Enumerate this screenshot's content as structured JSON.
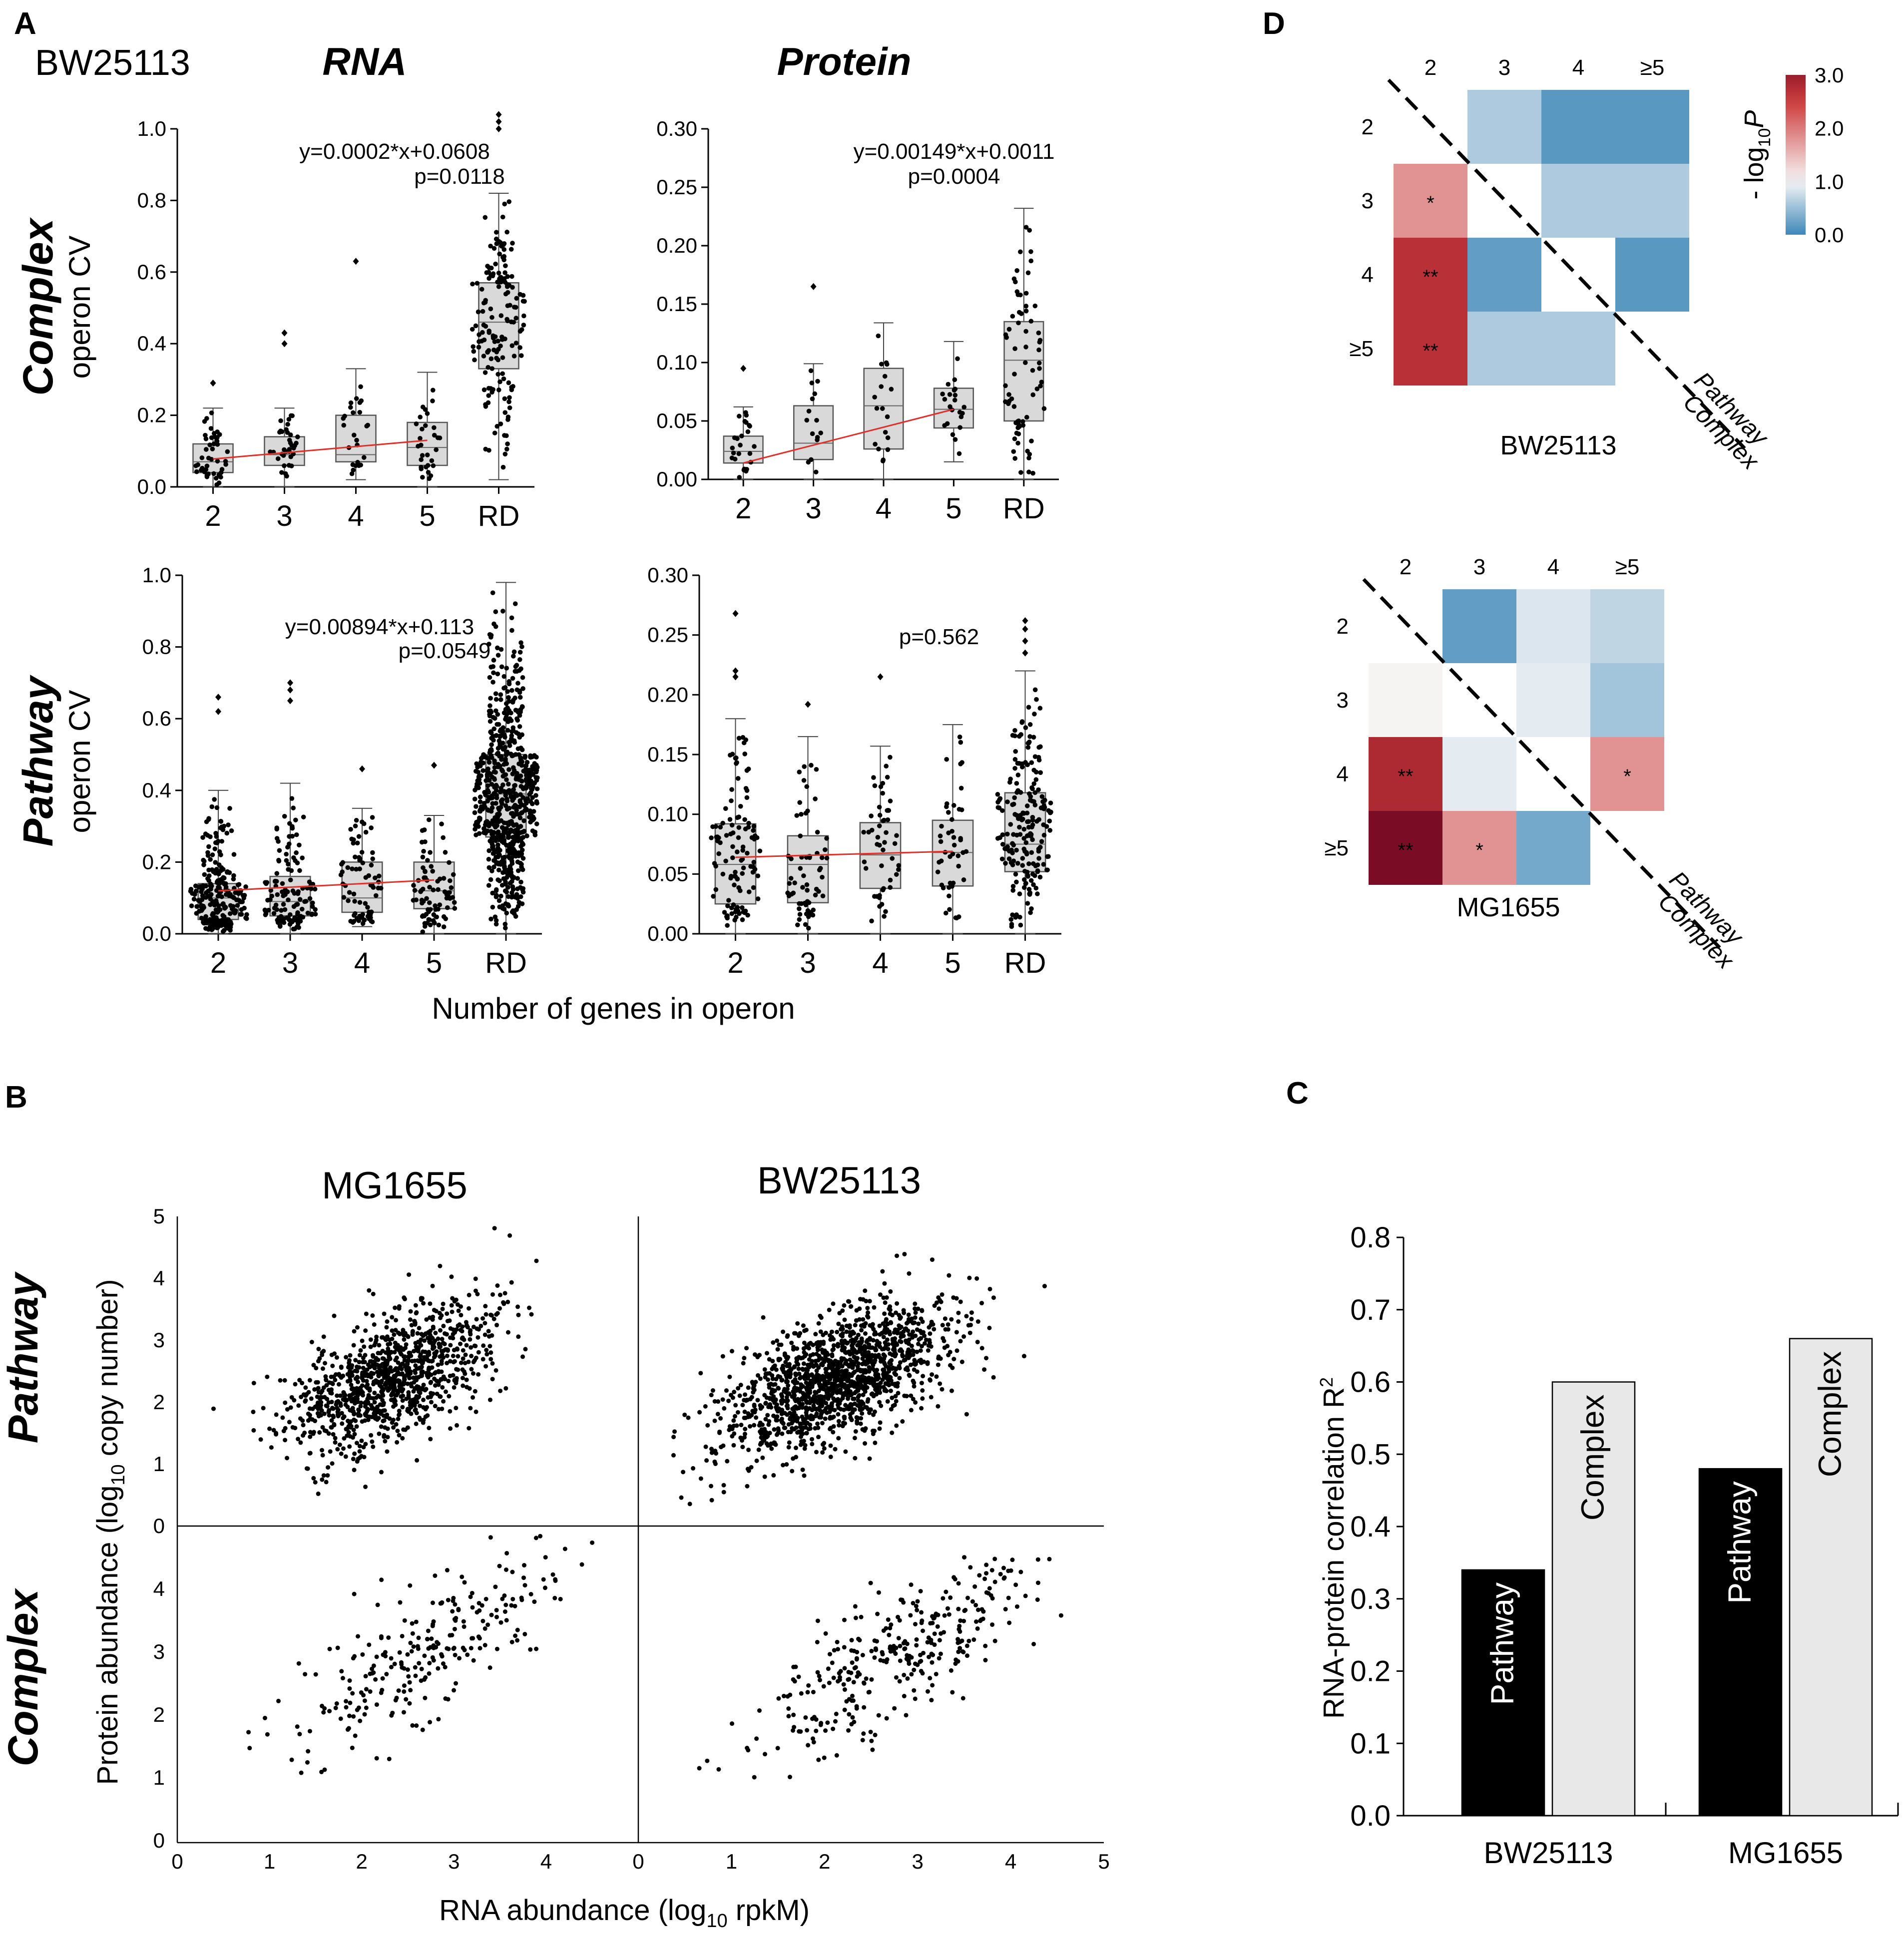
{
  "panel_labels": {
    "a": "A",
    "b": "B",
    "c": "C",
    "d": "D"
  },
  "strain_label": "BW25113",
  "col_titles": {
    "rna": "RNA",
    "protein": "Protein"
  },
  "row_titles": {
    "complex": "Complex",
    "pathway": "Pathway",
    "ylabel_suffix": "operon CV"
  },
  "a_xlabel": "Number of genes in operon",
  "a_categories": [
    "2",
    "3",
    "4",
    "5",
    "RD"
  ],
  "a_annotations": {
    "complex_rna": [
      "y=0.0002*x+0.0608",
      "p=0.0118"
    ],
    "complex_protein": [
      "y=0.00149*x+0.0011",
      "p=0.0004"
    ],
    "pathway_rna": [
      "y=0.00894*x+0.113",
      "p=0.0549"
    ],
    "pathway_protein": [
      "p=0.562"
    ]
  },
  "b_col_titles": [
    "MG1655",
    "BW25113"
  ],
  "b_row_titles": [
    "Pathway",
    "Complex"
  ],
  "b_xlabel_parts": [
    "RNA abundance (log",
    "10",
    " rpkM)"
  ],
  "b_ylabel_parts": [
    "Protein abundance (log",
    "10",
    " copy number)"
  ],
  "c_ylabel_parts": [
    "RNA-protein correlation R",
    "2"
  ],
  "d_labels": {
    "captions": [
      "BW25113",
      "MG1655"
    ],
    "cats": [
      "2",
      "3",
      "4",
      "≥5"
    ],
    "diag_top": "Pathway",
    "diag_bottom": "Complex",
    "colorbar_title_parts": [
      "- log",
      "10",
      "P"
    ],
    "colorbar_ticks": [
      "3.0",
      "2.0",
      "1.0",
      "0.0"
    ]
  },
  "colors": {
    "box": "#d9d9d9",
    "trend": "#e0302a",
    "bar_pathway": "#000000",
    "bar_complex": "#e8e8e8",
    "cmap_low": "#3d87b8",
    "cmap_mid": "#f7f7f7",
    "cmap_high": "#67001f"
  },
  "chart_data": [
    {
      "type": "box",
      "panel": "A",
      "title": "Complex RNA",
      "ylabel": "operon CV",
      "categories": [
        "2",
        "3",
        "4",
        "5",
        "RD"
      ],
      "ylim": [
        0,
        1.0
      ],
      "yticks": [
        "0.0",
        "0.2",
        "0.4",
        "0.6",
        "0.8",
        "1.0"
      ],
      "ytick_values": [
        0,
        0.2,
        0.4,
        0.6,
        0.8,
        1.0
      ],
      "boxes": [
        {
          "q1": 0.04,
          "med": 0.07,
          "q3": 0.12,
          "wlo": 0.0,
          "whi": 0.22,
          "n": 45
        },
        {
          "q1": 0.06,
          "med": 0.09,
          "q3": 0.14,
          "wlo": 0.0,
          "whi": 0.22,
          "n": 35
        },
        {
          "q1": 0.07,
          "med": 0.09,
          "q3": 0.2,
          "wlo": 0.02,
          "whi": 0.33,
          "n": 25
        },
        {
          "q1": 0.06,
          "med": 0.11,
          "q3": 0.18,
          "wlo": 0.0,
          "whi": 0.32,
          "n": 30
        },
        {
          "q1": 0.33,
          "med": 0.46,
          "q3": 0.57,
          "wlo": 0.02,
          "whi": 0.82,
          "n": 160
        }
      ],
      "outliers": [
        [
          0,
          0.29
        ],
        [
          1,
          0.4
        ],
        [
          1,
          0.43
        ],
        [
          2,
          0.63
        ],
        [
          4,
          1.0
        ],
        [
          4,
          1.02
        ],
        [
          4,
          1.04
        ]
      ],
      "trend": {
        "x": [
          2,
          5
        ],
        "y": [
          0.078,
          0.13
        ]
      },
      "annotation": [
        "y=0.0002*x+0.0608",
        "p=0.0118"
      ]
    },
    {
      "type": "box",
      "panel": "A",
      "title": "Complex Protein",
      "ylabel": "operon CV",
      "categories": [
        "2",
        "3",
        "4",
        "5",
        "RD"
      ],
      "ylim": [
        0,
        0.3
      ],
      "yticks": [
        "0.00",
        "0.05",
        "0.10",
        "0.15",
        "0.20",
        "0.25",
        "0.30"
      ],
      "ytick_values": [
        0,
        0.05,
        0.1,
        0.15,
        0.2,
        0.25,
        0.3
      ],
      "boxes": [
        {
          "q1": 0.014,
          "med": 0.024,
          "q3": 0.037,
          "wlo": 0.0,
          "whi": 0.062,
          "n": 25
        },
        {
          "q1": 0.017,
          "med": 0.031,
          "q3": 0.063,
          "wlo": 0.0,
          "whi": 0.099,
          "n": 15
        },
        {
          "q1": 0.026,
          "med": 0.063,
          "q3": 0.095,
          "wlo": 0.0,
          "whi": 0.134,
          "n": 18
        },
        {
          "q1": 0.044,
          "med": 0.06,
          "q3": 0.078,
          "wlo": 0.015,
          "whi": 0.118,
          "n": 22
        },
        {
          "q1": 0.05,
          "med": 0.102,
          "q3": 0.135,
          "wlo": 0.0,
          "whi": 0.232,
          "n": 70
        }
      ],
      "outliers": [
        [
          0,
          0.095
        ],
        [
          1,
          0.165
        ]
      ],
      "trend": {
        "x": [
          2,
          5
        ],
        "y": [
          0.014,
          0.06
        ]
      },
      "annotation": [
        "y=0.00149*x+0.0011",
        "p=0.0004"
      ]
    },
    {
      "type": "box",
      "panel": "A",
      "title": "Pathway RNA",
      "ylabel": "operon CV",
      "categories": [
        "2",
        "3",
        "4",
        "5",
        "RD"
      ],
      "ylim": [
        0,
        1.0
      ],
      "yticks": [
        "0.0",
        "0.2",
        "0.4",
        "0.6",
        "0.8",
        "1.0"
      ],
      "ytick_values": [
        0,
        0.2,
        0.4,
        0.6,
        0.8,
        1.0
      ],
      "boxes": [
        {
          "q1": 0.04,
          "med": 0.1,
          "q3": 0.14,
          "wlo": 0.0,
          "whi": 0.4,
          "n": 260
        },
        {
          "q1": 0.05,
          "med": 0.09,
          "q3": 0.16,
          "wlo": 0.0,
          "whi": 0.42,
          "n": 130
        },
        {
          "q1": 0.06,
          "med": 0.1,
          "q3": 0.2,
          "wlo": 0.02,
          "whi": 0.35,
          "n": 75
        },
        {
          "q1": 0.07,
          "med": 0.12,
          "q3": 0.2,
          "wlo": 0.0,
          "whi": 0.33,
          "n": 80
        },
        {
          "q1": 0.27,
          "med": 0.39,
          "q3": 0.5,
          "wlo": 0.0,
          "whi": 0.98,
          "n": 700
        }
      ],
      "outliers": [
        [
          0,
          0.62
        ],
        [
          0,
          0.66
        ],
        [
          1,
          0.65
        ],
        [
          1,
          0.68
        ],
        [
          1,
          0.7
        ],
        [
          2,
          0.46
        ],
        [
          3,
          0.47
        ]
      ],
      "trend": {
        "x": [
          2,
          5
        ],
        "y": [
          0.12,
          0.15
        ]
      },
      "annotation": [
        "y=0.00894*x+0.113",
        "p=0.0549"
      ]
    },
    {
      "type": "box",
      "panel": "A",
      "title": "Pathway Protein",
      "ylabel": "operon CV",
      "categories": [
        "2",
        "3",
        "4",
        "5",
        "RD"
      ],
      "ylim": [
        0,
        0.3
      ],
      "yticks": [
        "0.00",
        "0.05",
        "0.10",
        "0.15",
        "0.20",
        "0.25",
        "0.30"
      ],
      "ytick_values": [
        0,
        0.05,
        0.1,
        0.15,
        0.2,
        0.25,
        0.3
      ],
      "boxes": [
        {
          "q1": 0.025,
          "med": 0.058,
          "q3": 0.092,
          "wlo": 0.0,
          "whi": 0.18,
          "n": 110
        },
        {
          "q1": 0.026,
          "med": 0.058,
          "q3": 0.082,
          "wlo": 0.0,
          "whi": 0.165,
          "n": 65
        },
        {
          "q1": 0.038,
          "med": 0.066,
          "q3": 0.093,
          "wlo": 0.0,
          "whi": 0.157,
          "n": 50
        },
        {
          "q1": 0.04,
          "med": 0.068,
          "q3": 0.095,
          "wlo": 0.0,
          "whi": 0.175,
          "n": 45
        },
        {
          "q1": 0.052,
          "med": 0.075,
          "q3": 0.118,
          "wlo": 0.0,
          "whi": 0.22,
          "n": 200
        }
      ],
      "outliers": [
        [
          0,
          0.215
        ],
        [
          0,
          0.22
        ],
        [
          0,
          0.268
        ],
        [
          1,
          0.192
        ],
        [
          2,
          0.215
        ],
        [
          4,
          0.235
        ],
        [
          4,
          0.245
        ],
        [
          4,
          0.255
        ],
        [
          4,
          0.262
        ]
      ],
      "trend": {
        "x": [
          2,
          5
        ],
        "y": [
          0.064,
          0.069
        ]
      },
      "annotation": [
        "p=0.562"
      ]
    },
    {
      "type": "scatter",
      "panel": "B",
      "xlim": [
        0,
        5
      ],
      "ylim": [
        0,
        5
      ],
      "xticks": [
        "0",
        "1",
        "2",
        "3",
        "4",
        "5"
      ],
      "yticks": [
        "0",
        "1",
        "2",
        "3",
        "4",
        "5"
      ],
      "xlabel": "RNA abundance (log10 rpkM)",
      "ylabel": "Protein abundance (log10 copy number)",
      "facets": [
        {
          "row": "Pathway",
          "col": "MG1655",
          "n": 1100,
          "cx": 2.3,
          "cy": 2.4,
          "sx": 0.55,
          "sy": 0.6,
          "corr": 0.58,
          "seed": 11
        },
        {
          "row": "Pathway",
          "col": "BW25113",
          "n": 1500,
          "cx": 2.1,
          "cy": 2.35,
          "sx": 0.6,
          "sy": 0.6,
          "corr": 0.58,
          "seed": 23
        },
        {
          "row": "Complex",
          "col": "MG1655",
          "n": 260,
          "cx": 2.8,
          "cy": 3.1,
          "sx": 0.75,
          "sy": 0.8,
          "corr": 0.78,
          "seed": 37
        },
        {
          "row": "Complex",
          "col": "BW25113",
          "n": 330,
          "cx": 2.7,
          "cy": 2.8,
          "sx": 0.75,
          "sy": 0.8,
          "corr": 0.78,
          "seed": 51
        }
      ]
    },
    {
      "type": "bar",
      "panel": "C",
      "groups": [
        "BW25113",
        "MG1655"
      ],
      "series": [
        {
          "name": "Pathway",
          "values": [
            0.34,
            0.48
          ]
        },
        {
          "name": "Complex",
          "values": [
            0.6,
            0.66
          ]
        }
      ],
      "ylim": [
        0,
        0.8
      ],
      "yticks": [
        "0.0",
        "0.1",
        "0.2",
        "0.3",
        "0.4",
        "0.5",
        "0.6",
        "0.7",
        "0.8"
      ],
      "ylabel": "RNA-protein correlation R2"
    },
    {
      "type": "heatmap",
      "panel": "D",
      "caption": "BW25113",
      "rows": [
        "2",
        "3",
        "4",
        "≥5"
      ],
      "cols": [
        "2",
        "3",
        "4",
        "≥5"
      ],
      "vmin": 0,
      "vmax": 3,
      "colorbar_ticks": [
        3.0,
        2.0,
        1.0,
        0.0
      ],
      "colorbar_title": "- log10 P",
      "values": [
        [
          null,
          0.6,
          0.15,
          0.15
        ],
        [
          1.8,
          null,
          0.6,
          0.6
        ],
        [
          2.7,
          0.2,
          null,
          0.15
        ],
        [
          2.7,
          0.6,
          0.6,
          null
        ]
      ],
      "labels": [
        [
          "",
          "",
          "",
          ""
        ],
        [
          "*",
          "",
          "",
          ""
        ],
        [
          "**",
          "",
          "",
          ""
        ],
        [
          "**",
          "",
          "",
          ""
        ]
      ],
      "upper": "Pathway",
      "lower": "Complex"
    },
    {
      "type": "heatmap",
      "panel": "D",
      "caption": "MG1655",
      "rows": [
        "2",
        "3",
        "4",
        "≥5"
      ],
      "cols": [
        "2",
        "3",
        "4",
        "≥5"
      ],
      "vmin": 0,
      "vmax": 3,
      "values": [
        [
          null,
          0.2,
          0.85,
          0.7
        ],
        [
          1.03,
          null,
          0.9,
          0.55
        ],
        [
          2.8,
          0.9,
          null,
          1.8
        ],
        [
          3.3,
          1.8,
          0.3,
          null
        ]
      ],
      "labels": [
        [
          "",
          "",
          "",
          ""
        ],
        [
          "",
          "",
          "",
          ""
        ],
        [
          "**",
          "",
          "",
          "*"
        ],
        [
          "**",
          "*",
          "",
          ""
        ]
      ],
      "upper": "Pathway",
      "lower": "Complex"
    }
  ]
}
